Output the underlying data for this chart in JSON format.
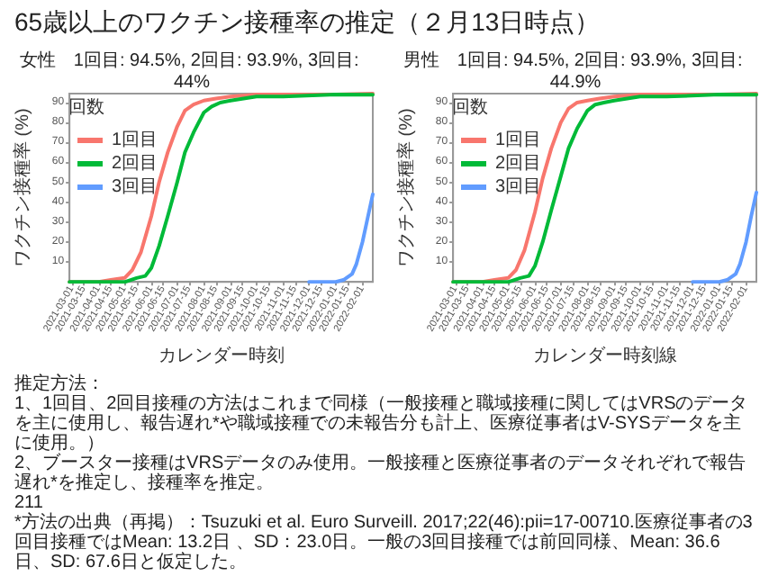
{
  "chart_data": [
    {
      "type": "other",
      "title": "65歳以上のワクチン接種率の推定（２月13日時点）"
    },
    {
      "type": "line",
      "title": "女性　1回目: 94.5%, 2回目: 93.9%, 3回目: 44%",
      "xlabel": "カレンダー時刻",
      "ylabel": "ワクチン接種率 (%)",
      "legend_title": "回数",
      "legend": "top left",
      "marker": "none",
      "line_style": "solid",
      "grid": false,
      "xlim": [
        "2021-02-26",
        "2022-02-13"
      ],
      "ylim": [
        0,
        94.5
      ],
      "yticks": [
        10,
        20,
        30,
        40,
        50,
        60,
        70,
        80,
        90
      ],
      "xticks": [
        "2021-03-01",
        "2021-03-15",
        "2021-04-01",
        "2021-04-15",
        "2021-05-01",
        "2021-05-15",
        "2021-06-01",
        "2021-06-15",
        "2021-07-01",
        "2021-07-15",
        "2021-08-01",
        "2021-08-15",
        "2021-09-01",
        "2021-09-15",
        "2021-10-01",
        "2021-10-15",
        "2021-11-01",
        "2021-11-15",
        "2021-12-01",
        "2021-12-15",
        "2022-01-01",
        "2022-01-15",
        "2022-02-01"
      ],
      "series": [
        {
          "name": "1回目",
          "color": "#f8766d",
          "x": [
            "2021-02-26",
            "2021-04-01",
            "2021-04-15",
            "2021-05-01",
            "2021-05-10",
            "2021-05-20",
            "2021-06-01",
            "2021-06-10",
            "2021-06-20",
            "2021-07-01",
            "2021-07-10",
            "2021-07-20",
            "2021-08-01",
            "2021-08-15",
            "2021-09-01",
            "2021-10-01",
            "2021-11-01",
            "2022-01-01",
            "2022-02-13"
          ],
          "values": [
            0,
            0,
            1,
            2,
            6,
            15,
            33,
            50,
            65,
            78,
            86,
            89,
            91,
            92,
            93,
            94,
            94,
            94,
            94.5
          ]
        },
        {
          "name": "2回目",
          "color": "#00ba38",
          "x": [
            "2021-02-26",
            "2021-05-01",
            "2021-05-15",
            "2021-05-25",
            "2021-06-01",
            "2021-06-10",
            "2021-06-20",
            "2021-07-01",
            "2021-07-10",
            "2021-07-20",
            "2021-08-01",
            "2021-08-10",
            "2021-08-20",
            "2021-09-01",
            "2021-10-01",
            "2021-11-01",
            "2022-01-01",
            "2022-02-13"
          ],
          "values": [
            0,
            0,
            2,
            3,
            7,
            18,
            33,
            50,
            65,
            75,
            85,
            88,
            90,
            91,
            93,
            93,
            94,
            93.9
          ]
        },
        {
          "name": "3回目",
          "color": "#619cff",
          "x": [
            "2021-12-01",
            "2022-01-01",
            "2022-01-10",
            "2022-01-20",
            "2022-01-25",
            "2022-02-01",
            "2022-02-07",
            "2022-02-13"
          ],
          "values": [
            0,
            0,
            1,
            4,
            9,
            20,
            32,
            44
          ]
        }
      ]
    },
    {
      "type": "line",
      "title": "男性　1回目: 94.5%, 2回目: 93.9%, 3回目: 44.9%",
      "xlabel": "カレンダー時刻線",
      "ylabel": "ワクチン接種率 (%)",
      "legend_title": "回数",
      "legend": "top left",
      "marker": "none",
      "line_style": "solid",
      "grid": false,
      "xlim": [
        "2021-02-26",
        "2022-02-13"
      ],
      "ylim": [
        0,
        94.5
      ],
      "yticks": [
        10,
        20,
        30,
        40,
        50,
        60,
        70,
        80,
        90
      ],
      "xticks": [
        "2021-03-01",
        "2021-03-15",
        "2021-04-01",
        "2021-04-15",
        "2021-05-01",
        "2021-05-15",
        "2021-06-01",
        "2021-06-15",
        "2021-07-01",
        "2021-07-15",
        "2021-08-01",
        "2021-08-15",
        "2021-09-01",
        "2021-09-15",
        "2021-10-01",
        "2021-10-15",
        "2021-11-01",
        "2021-11-15",
        "2021-12-01",
        "2021-12-15",
        "2022-01-01",
        "2022-01-15",
        "2022-02-01"
      ],
      "series": [
        {
          "name": "1回目",
          "color": "#f8766d",
          "x": [
            "2021-02-26",
            "2021-04-01",
            "2021-04-15",
            "2021-05-01",
            "2021-05-10",
            "2021-05-20",
            "2021-06-01",
            "2021-06-10",
            "2021-06-20",
            "2021-07-01",
            "2021-07-10",
            "2021-07-20",
            "2021-08-01",
            "2021-08-15",
            "2021-09-01",
            "2021-10-01",
            "2021-11-01",
            "2022-01-01",
            "2022-02-13"
          ],
          "values": [
            0,
            0,
            1,
            2,
            6,
            16,
            35,
            52,
            67,
            80,
            87,
            90,
            91,
            92,
            93,
            94,
            94,
            94,
            94.5
          ]
        },
        {
          "name": "2回目",
          "color": "#00ba38",
          "x": [
            "2021-02-26",
            "2021-05-01",
            "2021-05-15",
            "2021-05-25",
            "2021-06-01",
            "2021-06-10",
            "2021-06-20",
            "2021-07-01",
            "2021-07-10",
            "2021-07-20",
            "2021-08-01",
            "2021-08-10",
            "2021-08-20",
            "2021-09-01",
            "2021-10-01",
            "2021-11-01",
            "2022-01-01",
            "2022-02-13"
          ],
          "values": [
            0,
            0,
            2,
            3,
            8,
            20,
            36,
            53,
            67,
            77,
            86,
            89,
            90,
            91,
            93,
            93,
            94,
            93.9
          ]
        },
        {
          "name": "3回目",
          "color": "#619cff",
          "x": [
            "2021-12-01",
            "2022-01-01",
            "2022-01-10",
            "2022-01-20",
            "2022-01-25",
            "2022-02-01",
            "2022-02-07",
            "2022-02-13"
          ],
          "values": [
            0,
            0,
            1,
            4,
            9,
            20,
            33,
            44.9
          ]
        }
      ]
    },
    {
      "type": "other",
      "annotations": [
        "推定方法：",
        "1、1回目、2回目接種の方法はこれまで同様（一般接種と職域接種に関してはVRSのデータを主に使用し、報告遅れ*や職域接種での未報告分も計上、医療従事者はV-SYSデータを主に使用。）",
        "2、ブースター接種はVRSデータのみ使用。一般接種と医療従事者のデータそれぞれで報告遅れ*を推定し、接種率を推定。",
        "211",
        "*方法の出典（再掲）：Tsuzuki et al. Euro Surveill. 2017;22(46):pii=17-00710.医療従事者の3回目接種ではMean: 13.2日 、SD：23.0日。一般の3回目接種では前回同様、Mean: 36.6日、SD: 67.6日と仮定した。"
      ]
    }
  ]
}
